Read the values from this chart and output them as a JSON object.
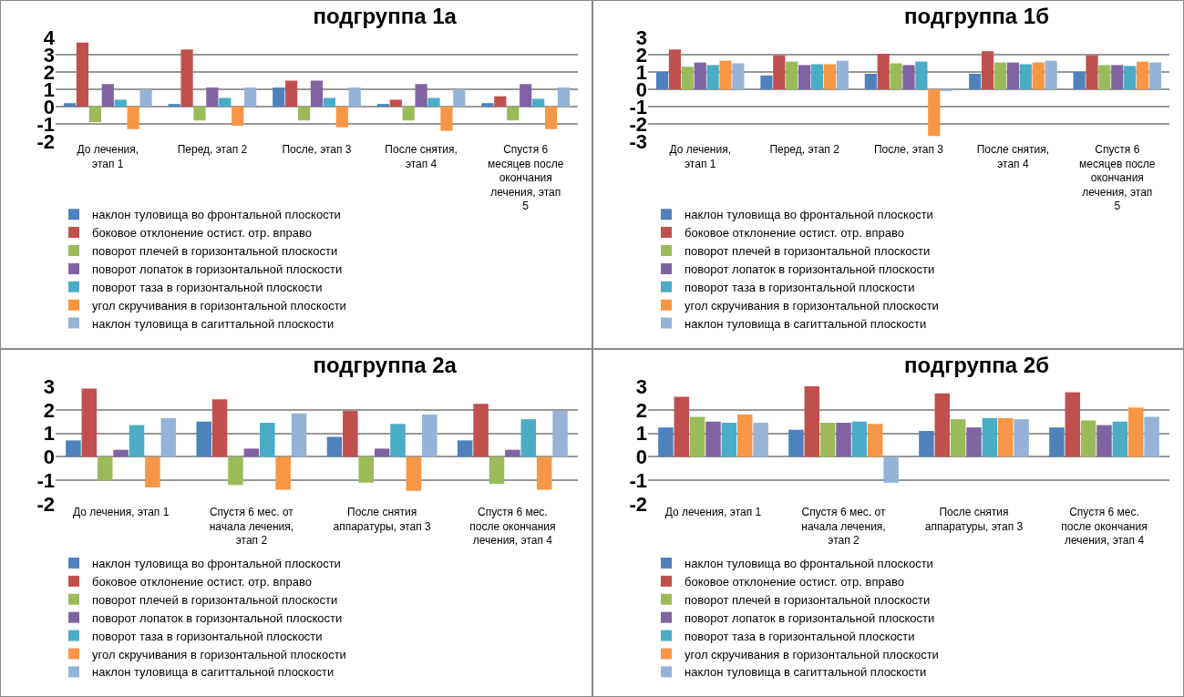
{
  "chart_data": [
    {
      "type": "bar",
      "title": "подгруппа 1а",
      "categories": [
        "До лечения, этап 1",
        "Перед, этап 2",
        "После, этап 3",
        "После снятия, этап 4",
        "Спустя 6 месяцев после окончания лечения, этап 5"
      ],
      "ylim": [
        -2,
        4
      ],
      "yticks": [
        -2,
        -1,
        0,
        1,
        2,
        3,
        4
      ],
      "grid": "y",
      "legend": "bottom left",
      "series": [
        {
          "name": "наклон туловища во фронтальной плоскости",
          "color": "#4f81bd",
          "values": [
            0.2,
            0.15,
            1.1,
            0.15,
            0.2
          ]
        },
        {
          "name": "боковое отклонение остист. отр. вправо",
          "color": "#c0504d",
          "values": [
            3.7,
            3.3,
            1.5,
            0.4,
            0.6
          ]
        },
        {
          "name": "поворот плечей в горизонтальной плоскости",
          "color": "#9bbb59",
          "values": [
            -0.9,
            -0.8,
            -0.8,
            -0.8,
            -0.8
          ]
        },
        {
          "name": "поворот лопаток в горизонтальной плоскости",
          "color": "#8064a2",
          "values": [
            1.3,
            1.1,
            1.5,
            1.3,
            1.3
          ]
        },
        {
          "name": "поворот таза в горизонтальной плоскости",
          "color": "#4bacc6",
          "values": [
            0.4,
            0.5,
            0.5,
            0.5,
            0.45
          ]
        },
        {
          "name": "угол скручивания в горизонтальной плоскости",
          "color": "#f79646",
          "values": [
            -1.3,
            -1.1,
            -1.2,
            -1.4,
            -1.3
          ]
        },
        {
          "name": "наклон туловища в сагиттальной плоскости",
          "color": "#95b3d7",
          "values": [
            1.0,
            1.1,
            1.1,
            1.0,
            1.1
          ]
        }
      ]
    },
    {
      "type": "bar",
      "title": "подгруппа 1б",
      "categories": [
        "До лечения, этап 1",
        "Перед, этап 2",
        "После, этап 3",
        "После снятия, этап 4",
        "Спустя 6 месяцев после окончания лечения, этап 5"
      ],
      "ylim": [
        -3,
        3
      ],
      "yticks": [
        -3,
        -2,
        -1,
        0,
        1,
        2,
        3
      ],
      "grid": "y",
      "legend": "bottom left",
      "series": [
        {
          "name": "наклон туловища во фронтальной плоскости",
          "color": "#4f81bd",
          "values": [
            1.0,
            0.8,
            0.9,
            0.9,
            1.0
          ]
        },
        {
          "name": "боковое отклонение остист. отр. вправо",
          "color": "#c0504d",
          "values": [
            2.3,
            1.95,
            2.05,
            2.2,
            1.95
          ]
        },
        {
          "name": "поворот плечей в горизонтальной плоскости",
          "color": "#9bbb59",
          "values": [
            1.3,
            1.6,
            1.5,
            1.55,
            1.4
          ]
        },
        {
          "name": "поворот лопаток в горизонтальной плоскости",
          "color": "#8064a2",
          "values": [
            1.55,
            1.4,
            1.4,
            1.55,
            1.4
          ]
        },
        {
          "name": "поворот таза в горизонтальной плоскости",
          "color": "#4bacc6",
          "values": [
            1.4,
            1.45,
            1.6,
            1.45,
            1.35
          ]
        },
        {
          "name": "угол скручивания в горизонтальной плоскости",
          "color": "#f79646",
          "values": [
            1.65,
            1.45,
            -2.7,
            1.55,
            1.6
          ]
        },
        {
          "name": "наклон туловища в сагиттальной плоскости",
          "color": "#95b3d7",
          "values": [
            1.5,
            1.65,
            -0.1,
            1.65,
            1.55
          ]
        }
      ]
    },
    {
      "type": "bar",
      "title": "подгруппа 2а",
      "categories": [
        "До лечения, этап 1",
        "Спустя 6 мес. от начала лечения, этап 2",
        "После снятия аппаратуры, этап 3",
        "Спустя 6 мес. после окончания лечения, этап 4"
      ],
      "ylim": [
        -2,
        3
      ],
      "yticks": [
        -2,
        -1,
        0,
        1,
        2,
        3
      ],
      "grid": "y",
      "legend": "bottom left",
      "series": [
        {
          "name": "наклон туловища во фронтальной плоскости",
          "color": "#4f81bd",
          "values": [
            0.7,
            1.5,
            0.85,
            0.7
          ]
        },
        {
          "name": "боковое отклонение остист. отр. вправо",
          "color": "#c0504d",
          "values": [
            2.9,
            2.45,
            1.95,
            2.25
          ]
        },
        {
          "name": "поворот плечей в горизонтальной плоскости",
          "color": "#9bbb59",
          "values": [
            -1.0,
            -1.2,
            -1.1,
            -1.15
          ]
        },
        {
          "name": "поворот лопаток в горизонтальной плоскости",
          "color": "#8064a2",
          "values": [
            0.3,
            0.35,
            0.35,
            0.3
          ]
        },
        {
          "name": "поворот таза в горизонтальной плоскости",
          "color": "#4bacc6",
          "values": [
            1.35,
            1.45,
            1.4,
            1.6
          ]
        },
        {
          "name": "угол скручивания в горизонтальной плоскости",
          "color": "#f79646",
          "values": [
            -1.3,
            -1.4,
            -1.45,
            -1.4
          ]
        },
        {
          "name": "наклон туловища в сагиттальной плоскости",
          "color": "#95b3d7",
          "values": [
            1.65,
            1.85,
            1.8,
            1.95
          ]
        }
      ]
    },
    {
      "type": "bar",
      "title": "подгруппа 2б",
      "categories": [
        "До лечения, этап 1",
        "Спустя 6 мес. от начала лечения, этап 2",
        "После снятия аппаратуры, этап 3",
        "Спустя 6 мес. после окончания лечения, этап 4"
      ],
      "ylim": [
        -2,
        3
      ],
      "yticks": [
        -2,
        -1,
        0,
        1,
        2,
        3
      ],
      "grid": "y",
      "legend": "bottom left",
      "series": [
        {
          "name": "наклон туловища во фронтальной плоскости",
          "color": "#4f81bd",
          "values": [
            1.25,
            1.15,
            1.1,
            1.25
          ]
        },
        {
          "name": "боковое отклонение остист. отр. вправо",
          "color": "#c0504d",
          "values": [
            2.55,
            3.0,
            2.7,
            2.75
          ]
        },
        {
          "name": "поворот плечей в горизонтальной плоскости",
          "color": "#9bbb59",
          "values": [
            1.7,
            1.45,
            1.6,
            1.55
          ]
        },
        {
          "name": "поворот лопаток в горизонтальной плоскости",
          "color": "#8064a2",
          "values": [
            1.5,
            1.45,
            1.25,
            1.35
          ]
        },
        {
          "name": "поворот таза в горизонтальной плоскости",
          "color": "#4bacc6",
          "values": [
            1.45,
            1.5,
            1.65,
            1.5
          ]
        },
        {
          "name": "угол скручивания в горизонтальной плоскости",
          "color": "#f79646",
          "values": [
            1.8,
            1.4,
            1.65,
            2.1
          ]
        },
        {
          "name": "наклон туловища в сагиттальной плоскости",
          "color": "#95b3d7",
          "values": [
            1.45,
            -1.1,
            1.6,
            1.7
          ]
        }
      ]
    }
  ]
}
